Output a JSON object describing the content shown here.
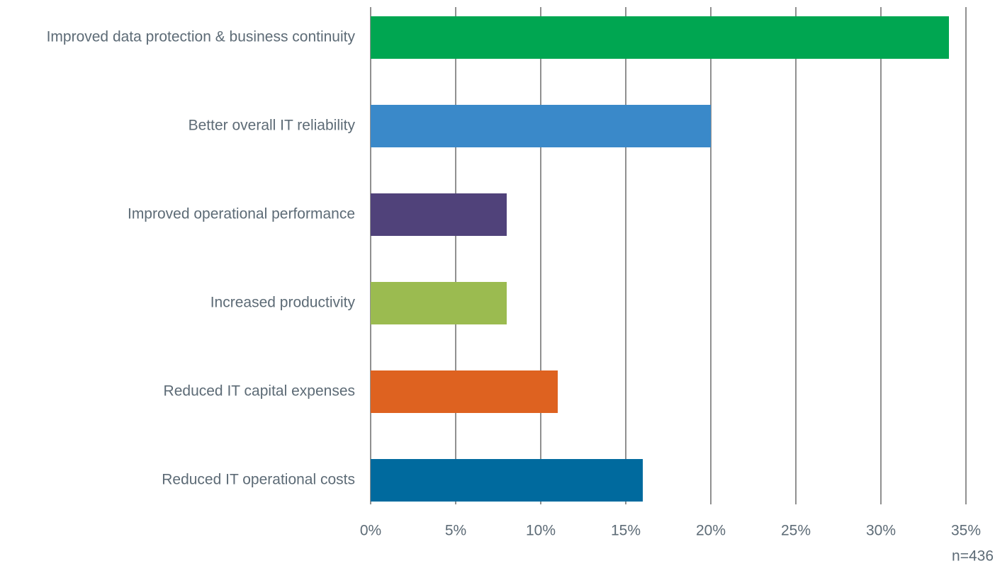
{
  "chart_data": {
    "type": "bar",
    "orientation": "horizontal",
    "categories": [
      "Improved data protection & business continuity",
      "Better overall IT reliability",
      "Improved operational performance",
      "Increased productivity",
      "Reduced IT capital expenses",
      "Reduced IT operational costs"
    ],
    "values": [
      34,
      20,
      8,
      8,
      11,
      16
    ],
    "colors": [
      "#00a651",
      "#3a89c9",
      "#50427a",
      "#9bbb50",
      "#de6220",
      "#006a9e"
    ],
    "xlim": [
      0,
      35
    ],
    "xticks": [
      {
        "value": 0,
        "label": "0%"
      },
      {
        "value": 5,
        "label": "5%"
      },
      {
        "value": 10,
        "label": "10%"
      },
      {
        "value": 15,
        "label": "15%"
      },
      {
        "value": 20,
        "label": "20%"
      },
      {
        "value": 25,
        "label": "25%"
      },
      {
        "value": 30,
        "label": "30%"
      },
      {
        "value": 35,
        "label": "35%"
      }
    ],
    "grid": true,
    "note": "n=436"
  }
}
